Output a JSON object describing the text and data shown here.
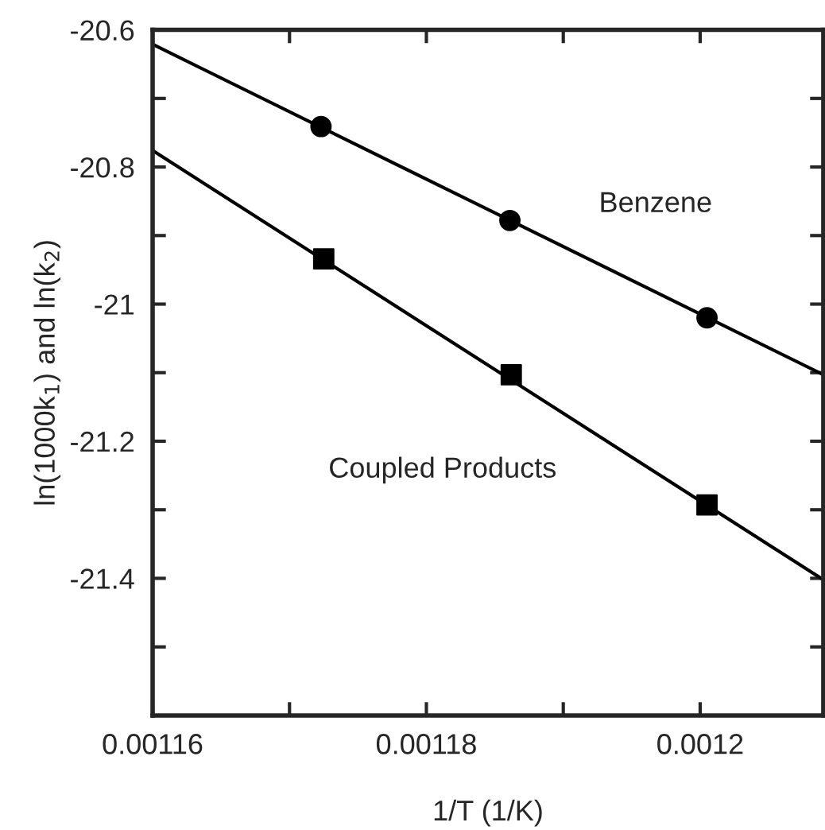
{
  "chart_data": {
    "type": "scatter",
    "xlabel": "1/T (1/K)",
    "ylabel": "ln(1000k$_{1}$) and ln(k$_{2}$)",
    "series": [
      {
        "name": "Benzene",
        "marker": "circle",
        "color": "#000000",
        "x": [
          0.0011723,
          0.0011861,
          0.0012005
        ],
        "values": [
          -20.741,
          -20.878,
          -21.02
        ]
      },
      {
        "name": "Coupled Products",
        "marker": "square",
        "color": "#000000",
        "x": [
          0.0011725,
          0.0011862,
          0.0012005
        ],
        "values": [
          -20.934,
          -21.103,
          -21.293
        ]
      },
      {
        "type": "line",
        "marker": "none",
        "color": "#000000",
        "x": [
          0.00116,
          0.001209
        ],
        "values": [
          -20.621,
          -21.103
        ]
      },
      {
        "type": "line",
        "marker": "none",
        "color": "#000000",
        "x": [
          0.00116,
          0.001209
        ],
        "values": [
          -20.776,
          -21.402
        ]
      }
    ],
    "xlim": [
      0.00116,
      0.001209
    ],
    "xticks": [
      0.00116,
      {
        "value": 0.00117,
        "label": null
      },
      0.00118,
      {
        "value": 0.00119,
        "label": null
      },
      0.0012
    ],
    "ylim": [
      -21.6,
      -20.6
    ],
    "yticks": [
      -20.6,
      {
        "value": -20.7,
        "label": null
      },
      -20.8,
      {
        "value": -20.9,
        "label": null
      },
      -21,
      {
        "value": -21.1,
        "label": null
      },
      -21.2,
      {
        "value": -21.3,
        "label": null
      },
      -21.4,
      {
        "value": -21.5,
        "label": null
      }
    ],
    "grid": false,
    "legend": false
  }
}
